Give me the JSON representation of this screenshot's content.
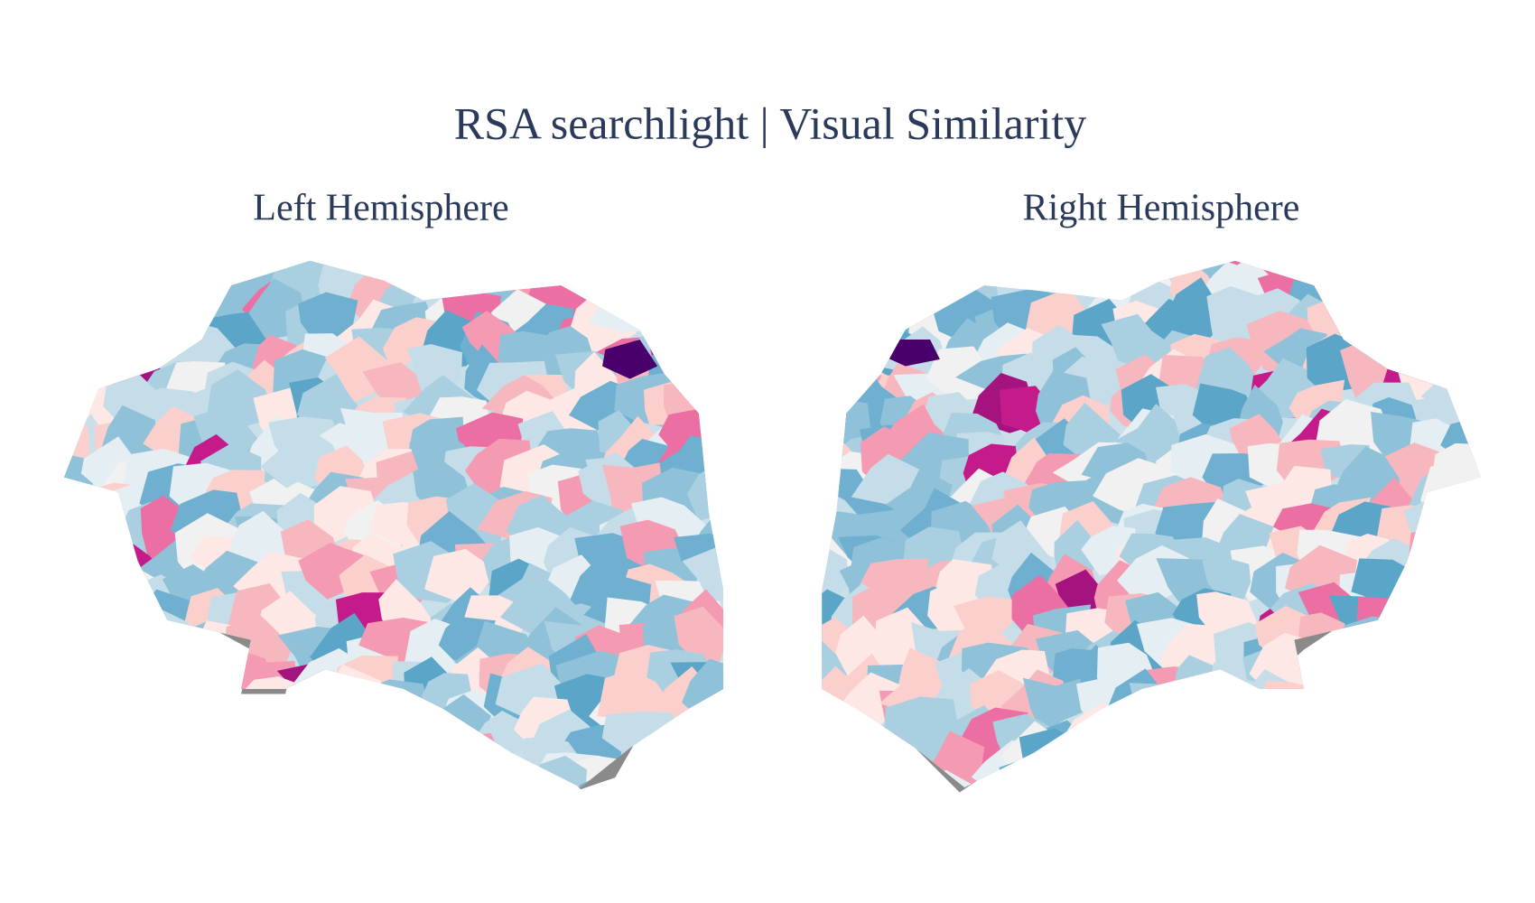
{
  "title": "RSA searchlight | Visual Similarity",
  "panels": [
    {
      "label": "Left Hemisphere"
    },
    {
      "label": "Right Hemisphere"
    }
  ]
}
